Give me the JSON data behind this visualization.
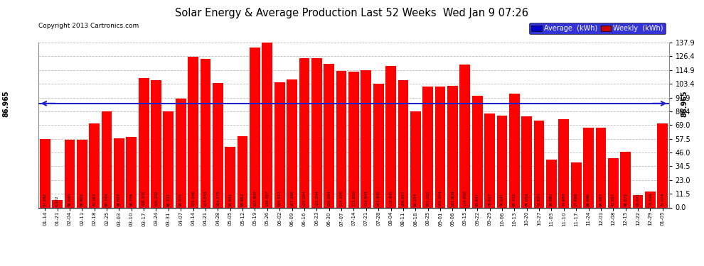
{
  "title": "Solar Energy & Average Production Last 52 Weeks  Wed Jan 9 07:26",
  "copyright": "Copyright 2013 Cartronics.com",
  "average_line": 86.965,
  "average_label": "86.965",
  "bar_color": "#ff0000",
  "average_line_color": "#2020cc",
  "background_color": "#ffffff",
  "plot_bg_color": "#ffffff",
  "grid_color": "#bbbbbb",
  "ylim_max": 137.9,
  "yticks": [
    0.0,
    11.5,
    23.0,
    34.5,
    46.0,
    57.5,
    69.0,
    80.4,
    91.9,
    103.4,
    114.9,
    126.4,
    137.9
  ],
  "ytick_labels": [
    "0.0",
    "11.5",
    "23.0",
    "34.5",
    "46.0",
    "57.5",
    "69.0",
    "80.4",
    "91.9",
    "103.4",
    "114.9",
    "126.4",
    "137.9"
  ],
  "categories": [
    "01-14",
    "01-21",
    "02-04",
    "02-11",
    "02-18",
    "02-25",
    "03-03",
    "03-10",
    "03-17",
    "03-24",
    "03-31",
    "04-07",
    "04-14",
    "04-21",
    "04-28",
    "05-05",
    "05-12",
    "05-19",
    "05-26",
    "06-02",
    "06-09",
    "06-16",
    "06-23",
    "06-30",
    "07-07",
    "07-14",
    "07-21",
    "07-28",
    "08-04",
    "08-11",
    "08-18",
    "08-25",
    "09-01",
    "09-08",
    "09-15",
    "09-22",
    "09-29",
    "10-06",
    "10-13",
    "10-20",
    "10-27",
    "11-03",
    "11-10",
    "11-17",
    "11-24",
    "12-01",
    "12-08",
    "12-15",
    "12-22",
    "12-29",
    "01-05"
  ],
  "values": [
    57.282,
    6.022,
    56.64,
    56.802,
    70.487,
    80.349,
    58.022,
    58.776,
    108.105,
    106.282,
    80.221,
    90.935,
    126.046,
    124.043,
    104.175,
    50.851,
    59.852,
    133.903,
    139.027,
    104.517,
    107.268,
    125.094,
    125.094,
    120.094,
    114.356,
    113.65,
    114.503,
    103.465,
    118.465,
    106.651,
    80.254,
    101.205,
    101.054,
    101.984,
    119.65,
    93.647,
    78.617,
    76.841,
    95.312,
    76.056,
    72.82,
    39.88,
    74.03,
    37.688,
    66.696,
    66.967,
    41.097,
    46.675,
    10.671,
    13.318,
    70.074
  ],
  "value_labels": [
    "57.282",
    "6.022",
    "56.640",
    "56.802",
    "70.487",
    "80.349",
    "58.022",
    "58.776",
    "108.105",
    "106.282",
    "80.221",
    "90.935",
    "126.046",
    "124.043",
    "104.175",
    "50.851",
    "59.852",
    "133.903",
    "139.027",
    "104.517",
    "107.268",
    "125.094",
    "125.094",
    "120.094",
    "114.356",
    "113.650",
    "114.503",
    "103.465",
    "118.465",
    "106.651",
    "80.254",
    "101.205",
    "101.054",
    "101.984",
    "119.650",
    "93.647",
    "78.617",
    "76.841",
    "95.312",
    "76.056",
    "72.820",
    "39.880",
    "74.030",
    "37.688",
    "66.696",
    "66.967",
    "41.097",
    "46.675",
    "10.671",
    "13.318",
    "70.074"
  ],
  "legend_avg_color": "#0000cc",
  "legend_weekly_color": "#cc0000"
}
